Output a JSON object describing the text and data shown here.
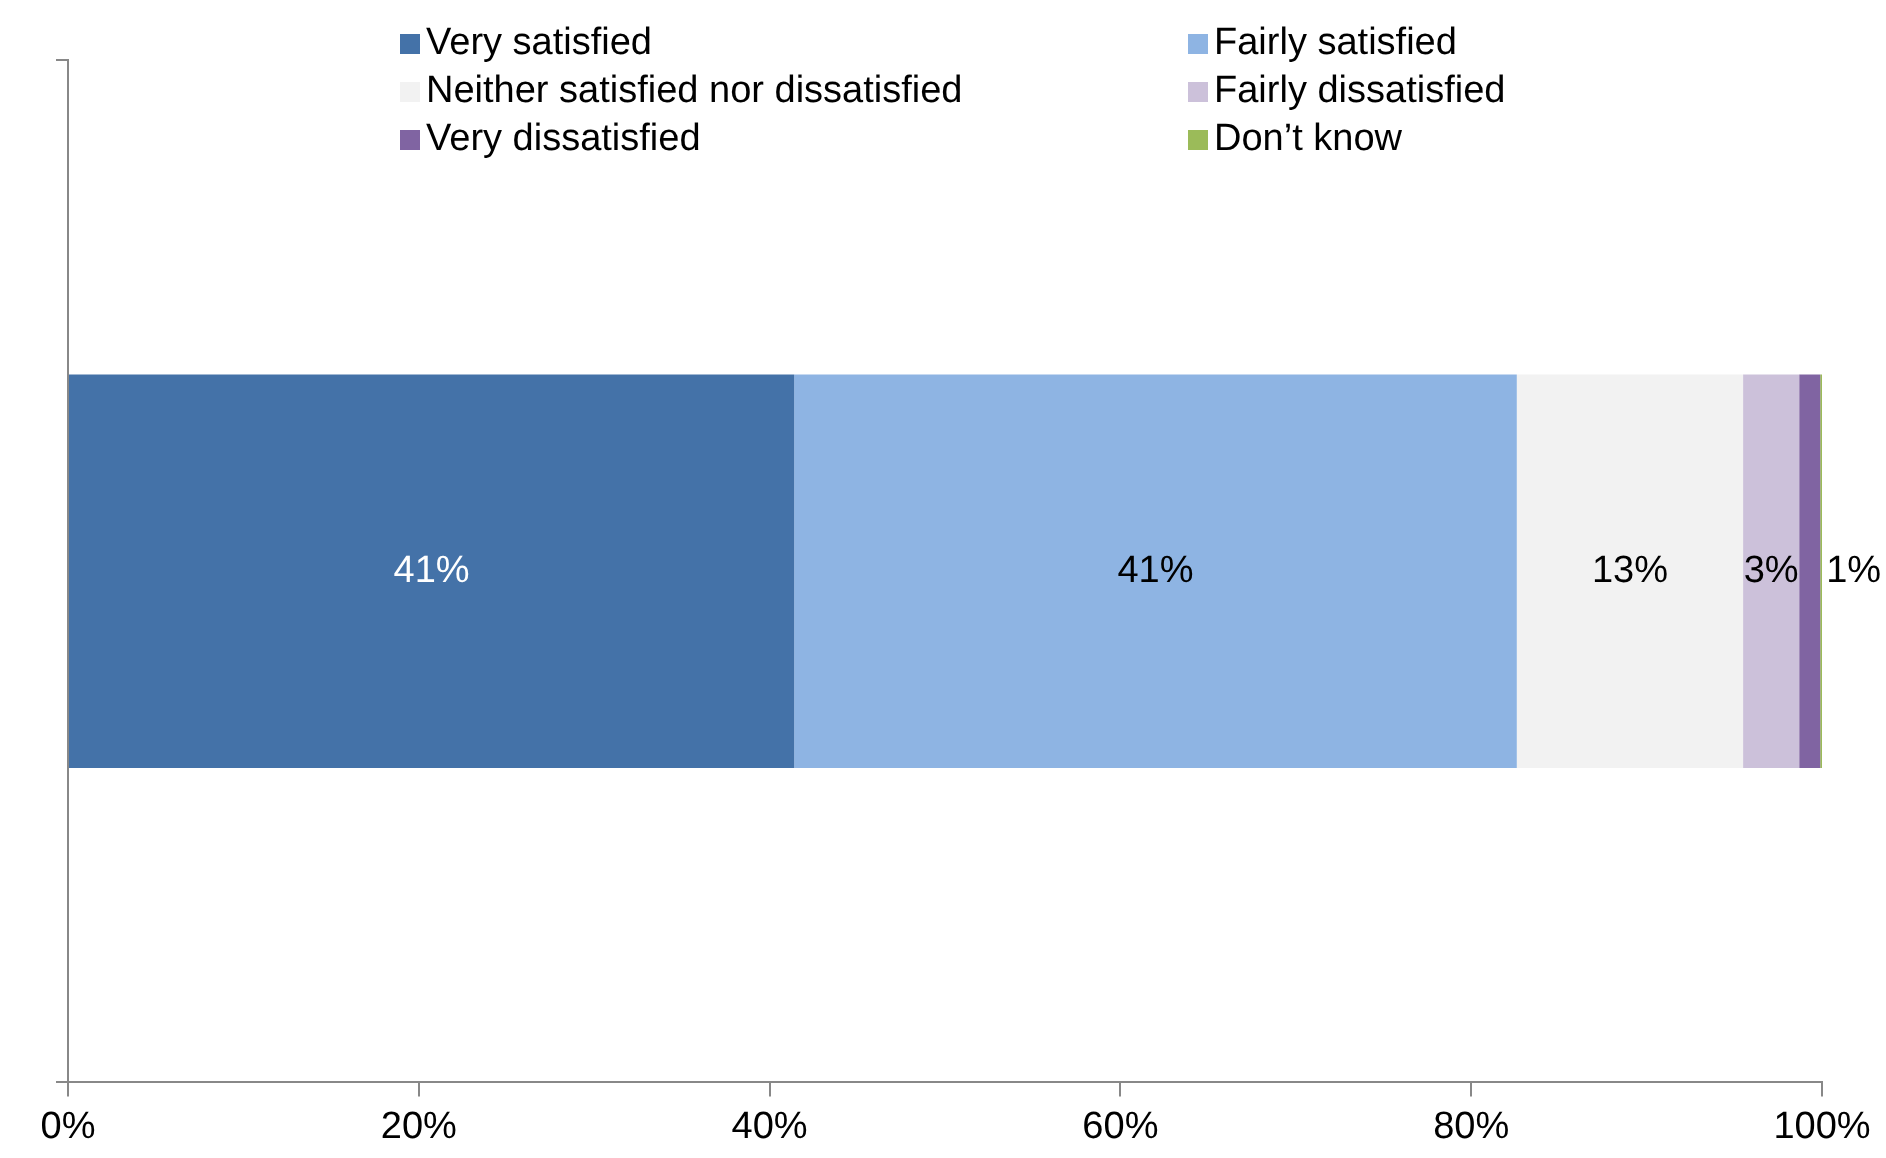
{
  "chart_data": {
    "type": "bar",
    "orientation": "horizontal",
    "stacked": true,
    "categories": [
      null
    ],
    "series": [
      {
        "name": "Very satisfied",
        "color": "#4472a8",
        "values": [
          41.4
        ],
        "value_labels": [
          "41%"
        ]
      },
      {
        "name": "Fairly satisfied",
        "color": "#8eb4e3",
        "values": [
          41.2
        ],
        "value_labels": [
          "41%"
        ]
      },
      {
        "name": "Neither satisfied nor dissatisfied",
        "color": "#f2f2f2",
        "values": [
          12.9
        ],
        "value_labels": [
          "13%"
        ]
      },
      {
        "name": "Fairly dissatisfied",
        "color": "#ccc1da",
        "values": [
          3.2
        ],
        "value_labels": [
          "3%"
        ]
      },
      {
        "name": "Very dissatisfied",
        "color": "#8064a2",
        "values": [
          1.2
        ],
        "value_labels": [
          "1%"
        ]
      },
      {
        "name": "Don’t know",
        "color": "#9bbb59",
        "values": [
          0.1
        ],
        "value_labels": [
          null
        ]
      }
    ],
    "xlim": [
      0,
      100
    ],
    "xticks": [
      {
        "value": 0,
        "label": "0%"
      },
      {
        "value": 20,
        "label": "20%"
      },
      {
        "value": 40,
        "label": "40%"
      },
      {
        "value": 60,
        "label": "60%"
      },
      {
        "value": 80,
        "label": "80%"
      },
      {
        "value": 100,
        "label": "100%"
      }
    ],
    "grid": false,
    "legend": "top"
  }
}
